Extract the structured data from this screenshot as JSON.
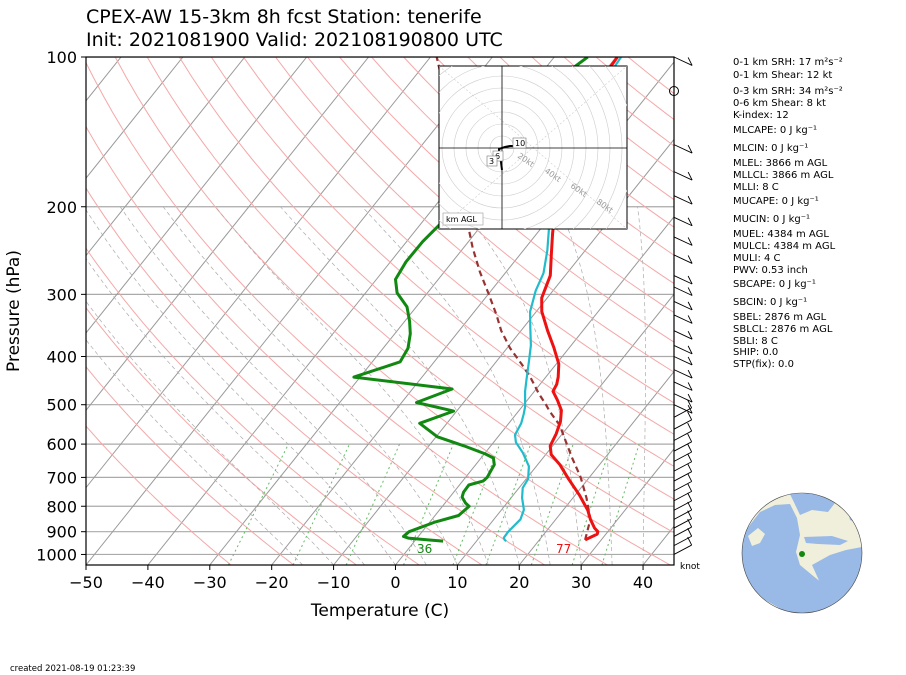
{
  "title": {
    "line1": "CPEX-AW 15-3km  8h fcst  Station: tenerife",
    "line2": "Init: 2021081900  Valid: 202108190800 UTC"
  },
  "created": "created 2021-08-19 01:23:39",
  "chart_data": {
    "type": "line",
    "subtype": "skew-T log-p diagram",
    "xlabel": "Temperature (C)",
    "ylabel": "Pressure (hPa)",
    "xlim": [
      -50,
      45
    ],
    "ylim": [
      1050,
      100
    ],
    "y_scale": "log",
    "x_ticks": [
      -50,
      -40,
      -30,
      -20,
      -10,
      0,
      10,
      20,
      30,
      40
    ],
    "y_ticks": [
      100,
      200,
      300,
      400,
      500,
      600,
      700,
      800,
      900,
      1000
    ],
    "colors": {
      "temperature": "#ee1111",
      "dewpoint": "#118811",
      "virtual": "#22bbcc",
      "parcel": "#993333",
      "dry_adiabat": "#f4a8a8",
      "moist_adiabat": "#aaaaaa",
      "mixing_ratio": "#66bb66",
      "isotherm": "#999999"
    },
    "series": [
      {
        "key": "temperature",
        "points": [
          [
            27.4,
            935
          ],
          [
            28.6,
            910
          ],
          [
            28.4,
            900
          ],
          [
            27.4,
            885
          ],
          [
            25.6,
            850
          ],
          [
            24,
            815
          ],
          [
            20.7,
            760
          ],
          [
            16.9,
            706
          ],
          [
            13.6,
            660
          ],
          [
            10.9,
            630
          ],
          [
            9.6,
            605
          ],
          [
            9,
            572
          ],
          [
            8.1,
            540
          ],
          [
            6.8,
            513
          ],
          [
            4.9,
            490
          ],
          [
            3,
            470
          ],
          [
            2.7,
            455
          ],
          [
            2,
            440
          ],
          [
            0.4,
            414
          ],
          [
            -2.6,
            383
          ],
          [
            -5.7,
            355
          ],
          [
            -9.1,
            325
          ],
          [
            -10.9,
            305
          ],
          [
            -12.4,
            275
          ],
          [
            -15.1,
            248
          ],
          [
            -17.5,
            226
          ],
          [
            -19.5,
            208
          ],
          [
            -21.7,
            190
          ],
          [
            -23.6,
            175
          ],
          [
            -25.4,
            160
          ],
          [
            -27,
            145
          ],
          [
            -28.5,
            132
          ],
          [
            -29.1,
            120
          ],
          [
            -29.5,
            110
          ],
          [
            -29.8,
            100
          ]
        ]
      },
      {
        "key": "virtual",
        "points": [
          [
            14.8,
            940
          ],
          [
            14.4,
            935
          ],
          [
            14,
            926
          ],
          [
            13.9,
            900
          ],
          [
            14.3,
            850
          ],
          [
            13.6,
            813
          ],
          [
            11.8,
            770
          ],
          [
            10.6,
            735
          ],
          [
            10.3,
            705
          ],
          [
            8.8,
            665
          ],
          [
            6.1,
            625
          ],
          [
            3.6,
            595
          ],
          [
            2.5,
            575
          ],
          [
            2,
            545
          ],
          [
            1.2,
            522
          ],
          [
            0.5,
            505
          ],
          [
            -1.5,
            470
          ],
          [
            -2.8,
            445
          ],
          [
            -4.7,
            410
          ],
          [
            -6.5,
            380
          ],
          [
            -8.9,
            350
          ],
          [
            -11,
            325
          ],
          [
            -12.8,
            295
          ],
          [
            -13.8,
            272
          ],
          [
            -16.1,
            245
          ],
          [
            -18.6,
            222
          ],
          [
            -21.1,
            200
          ],
          [
            -23.3,
            180
          ],
          [
            -24.9,
            160
          ],
          [
            -26.6,
            140
          ],
          [
            -28.1,
            125
          ],
          [
            -28.6,
            115
          ],
          [
            -29.2,
            100
          ]
        ]
      },
      {
        "key": "dewpoint",
        "points": [
          [
            4.6,
            940
          ],
          [
            2,
            935
          ],
          [
            -1.4,
            927
          ],
          [
            -2.4,
            920
          ],
          [
            -2.1,
            900
          ],
          [
            0.9,
            860
          ],
          [
            3.8,
            835
          ],
          [
            4.3,
            800
          ],
          [
            3.3,
            788
          ],
          [
            2,
            767
          ],
          [
            1.6,
            750
          ],
          [
            1.5,
            725
          ],
          [
            3.3,
            712
          ],
          [
            3.5,
            700
          ],
          [
            3,
            660
          ],
          [
            2,
            640
          ],
          [
            0.2,
            628
          ],
          [
            -4.3,
            605
          ],
          [
            -9.8,
            580
          ],
          [
            -14.4,
            545
          ],
          [
            -10.5,
            515
          ],
          [
            -17.6,
            495
          ],
          [
            -13.6,
            465
          ],
          [
            -31,
            440
          ],
          [
            -25.5,
            410
          ],
          [
            -26,
            385
          ],
          [
            -27.5,
            360
          ],
          [
            -29.2,
            340
          ],
          [
            -31.5,
            318
          ],
          [
            -34.9,
            298
          ],
          [
            -36.9,
            280
          ],
          [
            -37.5,
            258
          ],
          [
            -37.4,
            235
          ],
          [
            -36.8,
            215
          ],
          [
            -36.1,
            200
          ],
          [
            -36.5,
            185
          ],
          [
            -38,
            160
          ],
          [
            -37.8,
            140
          ],
          [
            -37.5,
            125
          ],
          [
            -36.4,
            110
          ],
          [
            -34.6,
            100
          ]
        ]
      },
      {
        "key": "parcel",
        "points": [
          [
            27.4,
            935
          ],
          [
            25.6,
            850
          ],
          [
            22.2,
            770
          ],
          [
            18.6,
            700
          ],
          [
            14.6,
            638
          ],
          [
            10.3,
            575
          ],
          [
            8.5,
            550
          ],
          [
            5,
            515
          ],
          [
            3.6,
            500
          ],
          [
            1,
            475
          ],
          [
            -2.5,
            440
          ],
          [
            -5.5,
            415
          ],
          [
            -9.5,
            385
          ],
          [
            -13.2,
            355
          ],
          [
            -16,
            330
          ],
          [
            -19.9,
            300
          ],
          [
            -24.3,
            270
          ],
          [
            -28.5,
            242
          ],
          [
            -32.5,
            216
          ],
          [
            -36.6,
            192
          ],
          [
            -40.7,
            170
          ],
          [
            -45,
            150
          ],
          [
            -49.7,
            130
          ],
          [
            -54,
            115
          ],
          [
            -59,
            100
          ]
        ]
      }
    ],
    "annotations": [
      {
        "text": "36",
        "kind": "dewpoint_surface",
        "color": "#118811"
      },
      {
        "text": "77",
        "kind": "temperature_surface",
        "color": "#ee1111"
      }
    ],
    "wind_barbs": {
      "unit_label": "knot",
      "levels_hpa": [
        1000,
        960,
        920,
        885,
        850,
        815,
        780,
        745,
        712,
        680,
        650,
        620,
        590,
        560,
        530,
        500,
        475,
        450,
        425,
        400,
        380,
        355,
        330,
        310,
        290,
        275,
        250,
        230,
        210,
        190,
        170,
        150,
        100
      ]
    },
    "hodograph": {
      "corner_label": "km AGL",
      "ring_labels": [
        "20kt",
        "40kt",
        "60kt",
        "80kt"
      ],
      "height_labels": [
        "10",
        "6",
        "3"
      ]
    },
    "globe": {
      "station_marker_color": "#118811"
    }
  },
  "indices": {
    "srh_0_1": "0-1 km SRH: 17 m²s⁻²",
    "shear_0_1": "0-1 km Shear: 12 kt",
    "srh_0_3": "0-3 km SRH: 34 m²s⁻²",
    "shear_0_6": "0-6 km Shear: 8 kt",
    "kindex": "K-index: 12",
    "mlcape": "MLCAPE: 0 J kg⁻¹",
    "mlcin": "MLCIN: 0 J kg⁻¹",
    "mlel": "MLEL: 3866 m AGL",
    "mllcl": "MLLCL: 3866 m AGL",
    "mlli": "MLLI: 8 C",
    "mucape": "MUCAPE: 0 J kg⁻¹",
    "mucin": "MUCIN: 0 J kg⁻¹",
    "muel": "MUEL: 4384 m AGL",
    "mulcl": "MULCL: 4384 m AGL",
    "muli": "MULI: 4 C",
    "pwv": "PWV: 0.53 inch",
    "sbcape": "SBCAPE: 0 J kg⁻¹",
    "sbcin": "SBCIN: 0 J kg⁻¹",
    "sbel": "SBEL: 2876 m AGL",
    "sblcl": "SBLCL: 2876 m AGL",
    "sbli": "SBLI: 8 C",
    "ship": "SHIP: 0.0",
    "stp": "STP(fix): 0.0"
  }
}
